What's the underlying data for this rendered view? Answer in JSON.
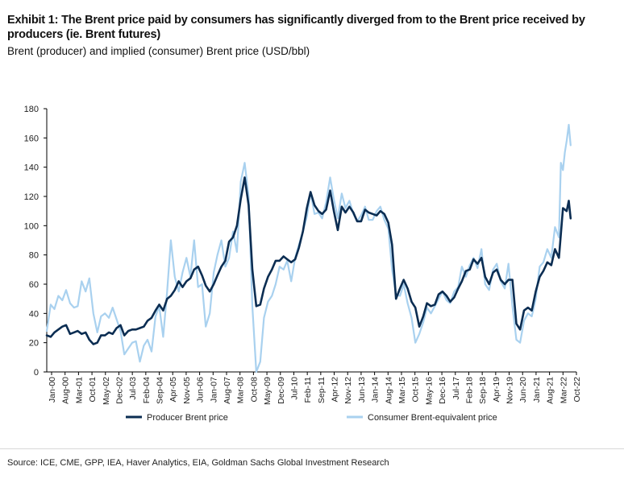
{
  "header": {
    "title": "Exhibit 1: The Brent price paid by consumers has significantly diverged from to the Brent price received by producers (ie. Brent futures)",
    "subtitle": "Brent (producer) and implied (consumer) Brent price (USD/bbl)"
  },
  "footer": {
    "source": "Source: ICE, CME, GPP, IEA, Haver Analytics, EIA, Goldman Sachs Global Investment Research"
  },
  "colors": {
    "producer": "#0b2d52",
    "consumer": "#a9d1ef",
    "axis": "#000000"
  },
  "chart_data": {
    "type": "line",
    "title": "Brent (producer) and implied (consumer) Brent price (USD/bbl)",
    "xlabel": "",
    "ylabel": "USD/bbl",
    "ylim": [
      0,
      180
    ],
    "yticks": [
      0,
      20,
      40,
      60,
      80,
      100,
      120,
      140,
      160,
      180
    ],
    "xlim": [
      2000.0,
      2022.75
    ],
    "xtick_labels": [
      "Jan-00",
      "Aug-00",
      "Mar-01",
      "Oct-01",
      "May-02",
      "Dec-02",
      "Jul-03",
      "Feb-04",
      "Sep-04",
      "Apr-05",
      "Nov-05",
      "Jun-06",
      "Jan-07",
      "Aug-07",
      "Mar-08",
      "Oct-08",
      "May-09",
      "Dec-09",
      "Jul-10",
      "Feb-11",
      "Sep-11",
      "Apr-12",
      "Nov-12",
      "Jun-13",
      "Jan-14",
      "Aug-14",
      "Mar-15",
      "Oct-15",
      "May-16",
      "Dec-16",
      "Jul-17",
      "Feb-18",
      "Sep-18",
      "Apr-19",
      "Nov-19",
      "Jun-20",
      "Jan-21",
      "Aug-21",
      "Mar-22",
      "Oct-22"
    ],
    "legend": "bottom",
    "series": [
      {
        "name": "Producer Brent price",
        "points": [
          [
            2000.0,
            25
          ],
          [
            2000.17,
            24
          ],
          [
            2000.33,
            27
          ],
          [
            2000.5,
            29
          ],
          [
            2000.67,
            31
          ],
          [
            2000.83,
            32
          ],
          [
            2001.0,
            26
          ],
          [
            2001.17,
            27
          ],
          [
            2001.33,
            28
          ],
          [
            2001.5,
            26
          ],
          [
            2001.67,
            27
          ],
          [
            2001.83,
            22
          ],
          [
            2002.0,
            19
          ],
          [
            2002.17,
            20
          ],
          [
            2002.33,
            25
          ],
          [
            2002.5,
            25
          ],
          [
            2002.67,
            27
          ],
          [
            2002.83,
            26
          ],
          [
            2003.0,
            30
          ],
          [
            2003.17,
            32
          ],
          [
            2003.33,
            25
          ],
          [
            2003.5,
            28
          ],
          [
            2003.67,
            29
          ],
          [
            2003.83,
            29
          ],
          [
            2004.0,
            30
          ],
          [
            2004.17,
            31
          ],
          [
            2004.33,
            35
          ],
          [
            2004.5,
            37
          ],
          [
            2004.67,
            42
          ],
          [
            2004.83,
            46
          ],
          [
            2005.0,
            42
          ],
          [
            2005.17,
            50
          ],
          [
            2005.33,
            52
          ],
          [
            2005.5,
            56
          ],
          [
            2005.67,
            62
          ],
          [
            2005.83,
            58
          ],
          [
            2006.0,
            62
          ],
          [
            2006.17,
            64
          ],
          [
            2006.33,
            70
          ],
          [
            2006.5,
            72
          ],
          [
            2006.67,
            66
          ],
          [
            2006.83,
            59
          ],
          [
            2007.0,
            55
          ],
          [
            2007.17,
            60
          ],
          [
            2007.33,
            66
          ],
          [
            2007.5,
            72
          ],
          [
            2007.67,
            76
          ],
          [
            2007.83,
            89
          ],
          [
            2008.0,
            92
          ],
          [
            2008.17,
            100
          ],
          [
            2008.33,
            118
          ],
          [
            2008.5,
            133
          ],
          [
            2008.67,
            114
          ],
          [
            2008.83,
            70
          ],
          [
            2009.0,
            45
          ],
          [
            2009.17,
            46
          ],
          [
            2009.33,
            57
          ],
          [
            2009.5,
            65
          ],
          [
            2009.67,
            70
          ],
          [
            2009.83,
            76
          ],
          [
            2010.0,
            76
          ],
          [
            2010.17,
            79
          ],
          [
            2010.33,
            77
          ],
          [
            2010.5,
            75
          ],
          [
            2010.67,
            77
          ],
          [
            2010.83,
            85
          ],
          [
            2011.0,
            96
          ],
          [
            2011.17,
            112
          ],
          [
            2011.33,
            123
          ],
          [
            2011.5,
            114
          ],
          [
            2011.67,
            110
          ],
          [
            2011.83,
            108
          ],
          [
            2012.0,
            111
          ],
          [
            2012.17,
            124
          ],
          [
            2012.33,
            110
          ],
          [
            2012.5,
            97
          ],
          [
            2012.67,
            113
          ],
          [
            2012.83,
            109
          ],
          [
            2013.0,
            113
          ],
          [
            2013.17,
            109
          ],
          [
            2013.33,
            103
          ],
          [
            2013.5,
            103
          ],
          [
            2013.67,
            111
          ],
          [
            2013.83,
            109
          ],
          [
            2014.0,
            108
          ],
          [
            2014.17,
            107
          ],
          [
            2014.33,
            110
          ],
          [
            2014.5,
            108
          ],
          [
            2014.67,
            102
          ],
          [
            2014.83,
            87
          ],
          [
            2015.0,
            50
          ],
          [
            2015.17,
            57
          ],
          [
            2015.33,
            63
          ],
          [
            2015.5,
            57
          ],
          [
            2015.67,
            48
          ],
          [
            2015.83,
            44
          ],
          [
            2016.0,
            31
          ],
          [
            2016.17,
            38
          ],
          [
            2016.33,
            47
          ],
          [
            2016.5,
            45
          ],
          [
            2016.67,
            46
          ],
          [
            2016.83,
            53
          ],
          [
            2017.0,
            55
          ],
          [
            2017.17,
            52
          ],
          [
            2017.33,
            48
          ],
          [
            2017.5,
            51
          ],
          [
            2017.67,
            57
          ],
          [
            2017.83,
            62
          ],
          [
            2018.0,
            69
          ],
          [
            2018.17,
            70
          ],
          [
            2018.33,
            77
          ],
          [
            2018.5,
            74
          ],
          [
            2018.67,
            78
          ],
          [
            2018.83,
            65
          ],
          [
            2019.0,
            60
          ],
          [
            2019.17,
            68
          ],
          [
            2019.33,
            70
          ],
          [
            2019.5,
            63
          ],
          [
            2019.67,
            60
          ],
          [
            2019.83,
            63
          ],
          [
            2020.0,
            63
          ],
          [
            2020.17,
            33
          ],
          [
            2020.33,
            29
          ],
          [
            2020.5,
            42
          ],
          [
            2020.67,
            44
          ],
          [
            2020.83,
            42
          ],
          [
            2021.0,
            55
          ],
          [
            2021.17,
            65
          ],
          [
            2021.33,
            69
          ],
          [
            2021.5,
            75
          ],
          [
            2021.67,
            73
          ],
          [
            2021.83,
            84
          ],
          [
            2022.0,
            78
          ],
          [
            2022.17,
            112
          ],
          [
            2022.33,
            110
          ],
          [
            2022.42,
            117
          ],
          [
            2022.5,
            105
          ]
        ]
      },
      {
        "name": "Consumer Brent-equivalent price",
        "points": [
          [
            2000.0,
            28
          ],
          [
            2000.17,
            46
          ],
          [
            2000.33,
            43
          ],
          [
            2000.5,
            52
          ],
          [
            2000.67,
            49
          ],
          [
            2000.83,
            56
          ],
          [
            2001.0,
            47
          ],
          [
            2001.17,
            44
          ],
          [
            2001.33,
            45
          ],
          [
            2001.5,
            62
          ],
          [
            2001.67,
            55
          ],
          [
            2001.83,
            64
          ],
          [
            2002.0,
            40
          ],
          [
            2002.17,
            27
          ],
          [
            2002.33,
            38
          ],
          [
            2002.5,
            40
          ],
          [
            2002.67,
            37
          ],
          [
            2002.83,
            44
          ],
          [
            2003.0,
            36
          ],
          [
            2003.17,
            28
          ],
          [
            2003.33,
            12
          ],
          [
            2003.5,
            16
          ],
          [
            2003.67,
            20
          ],
          [
            2003.83,
            21
          ],
          [
            2004.0,
            7
          ],
          [
            2004.17,
            18
          ],
          [
            2004.33,
            22
          ],
          [
            2004.5,
            14
          ],
          [
            2004.67,
            38
          ],
          [
            2004.83,
            45
          ],
          [
            2005.0,
            24
          ],
          [
            2005.17,
            55
          ],
          [
            2005.33,
            90
          ],
          [
            2005.5,
            65
          ],
          [
            2005.67,
            55
          ],
          [
            2005.83,
            68
          ],
          [
            2006.0,
            78
          ],
          [
            2006.17,
            65
          ],
          [
            2006.33,
            90
          ],
          [
            2006.5,
            58
          ],
          [
            2006.67,
            60
          ],
          [
            2006.83,
            31
          ],
          [
            2007.0,
            40
          ],
          [
            2007.17,
            68
          ],
          [
            2007.33,
            80
          ],
          [
            2007.5,
            90
          ],
          [
            2007.67,
            72
          ],
          [
            2007.83,
            78
          ],
          [
            2008.0,
            96
          ],
          [
            2008.17,
            82
          ],
          [
            2008.33,
            130
          ],
          [
            2008.5,
            143
          ],
          [
            2008.67,
            120
          ],
          [
            2008.83,
            45
          ],
          [
            2009.0,
            0
          ],
          [
            2009.17,
            7
          ],
          [
            2009.33,
            37
          ],
          [
            2009.5,
            48
          ],
          [
            2009.67,
            52
          ],
          [
            2009.83,
            60
          ],
          [
            2010.0,
            72
          ],
          [
            2010.17,
            70
          ],
          [
            2010.33,
            76
          ],
          [
            2010.5,
            62
          ],
          [
            2010.67,
            78
          ],
          [
            2010.83,
            87
          ],
          [
            2011.0,
            96
          ],
          [
            2011.17,
            106
          ],
          [
            2011.33,
            123
          ],
          [
            2011.5,
            108
          ],
          [
            2011.67,
            109
          ],
          [
            2011.83,
            105
          ],
          [
            2012.0,
            116
          ],
          [
            2012.17,
            133
          ],
          [
            2012.33,
            118
          ],
          [
            2012.5,
            105
          ],
          [
            2012.67,
            122
          ],
          [
            2012.83,
            112
          ],
          [
            2013.0,
            117
          ],
          [
            2013.17,
            108
          ],
          [
            2013.33,
            103
          ],
          [
            2013.5,
            107
          ],
          [
            2013.67,
            113
          ],
          [
            2013.83,
            104
          ],
          [
            2014.0,
            104
          ],
          [
            2014.17,
            110
          ],
          [
            2014.33,
            113
          ],
          [
            2014.5,
            104
          ],
          [
            2014.67,
            98
          ],
          [
            2014.83,
            70
          ],
          [
            2015.0,
            53
          ],
          [
            2015.17,
            52
          ],
          [
            2015.33,
            60
          ],
          [
            2015.5,
            47
          ],
          [
            2015.67,
            37
          ],
          [
            2015.83,
            20
          ],
          [
            2016.0,
            26
          ],
          [
            2016.17,
            34
          ],
          [
            2016.33,
            44
          ],
          [
            2016.5,
            40
          ],
          [
            2016.67,
            45
          ],
          [
            2016.83,
            50
          ],
          [
            2017.0,
            55
          ],
          [
            2017.17,
            49
          ],
          [
            2017.33,
            47
          ],
          [
            2017.5,
            55
          ],
          [
            2017.67,
            58
          ],
          [
            2017.83,
            72
          ],
          [
            2018.0,
            65
          ],
          [
            2018.17,
            73
          ],
          [
            2018.33,
            78
          ],
          [
            2018.5,
            71
          ],
          [
            2018.67,
            84
          ],
          [
            2018.83,
            60
          ],
          [
            2019.0,
            56
          ],
          [
            2019.17,
            70
          ],
          [
            2019.33,
            74
          ],
          [
            2019.5,
            62
          ],
          [
            2019.67,
            57
          ],
          [
            2019.83,
            74
          ],
          [
            2020.0,
            45
          ],
          [
            2020.17,
            22
          ],
          [
            2020.33,
            20
          ],
          [
            2020.5,
            35
          ],
          [
            2020.67,
            40
          ],
          [
            2020.83,
            38
          ],
          [
            2021.0,
            50
          ],
          [
            2021.17,
            72
          ],
          [
            2021.33,
            75
          ],
          [
            2021.5,
            84
          ],
          [
            2021.67,
            78
          ],
          [
            2021.83,
            99
          ],
          [
            2022.0,
            92
          ],
          [
            2022.08,
            143
          ],
          [
            2022.17,
            138
          ],
          [
            2022.25,
            150
          ],
          [
            2022.33,
            158
          ],
          [
            2022.42,
            169
          ],
          [
            2022.5,
            155
          ]
        ]
      }
    ]
  }
}
